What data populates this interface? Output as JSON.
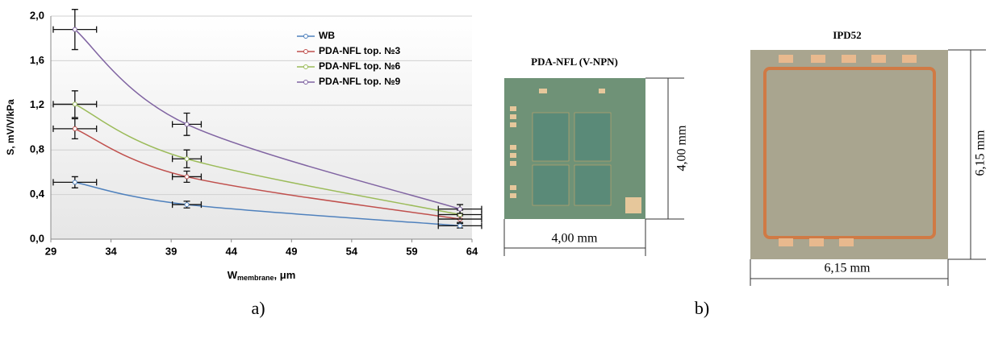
{
  "chart_data": {
    "type": "line",
    "ylabel": "S, mV/V/kPa",
    "xlabel": {
      "main": "W",
      "sub": "membrane",
      "unit": ", μm"
    },
    "x": [
      31,
      40.3,
      63
    ],
    "x_errors": [
      1.8,
      1.2,
      1.8
    ],
    "series": [
      {
        "name": "WB",
        "color": "#4f81bd",
        "values": [
          0.51,
          0.31,
          0.12
        ],
        "errors": [
          0.05,
          0.03,
          0.02
        ]
      },
      {
        "name": "PDA-NFL top. №3",
        "color": "#c0504d",
        "values": [
          0.99,
          0.56,
          0.18
        ],
        "errors": [
          0.09,
          0.05,
          0.03
        ]
      },
      {
        "name": "PDA-NFL top. №6",
        "color": "#9bbb59",
        "values": [
          1.21,
          0.72,
          0.22
        ],
        "errors": [
          0.12,
          0.08,
          0.04
        ]
      },
      {
        "name": "PDA-NFL top. №9",
        "color": "#8064a2",
        "values": [
          1.88,
          1.03,
          0.27
        ],
        "errors": [
          0.18,
          0.1,
          0.04
        ]
      }
    ],
    "xlim": [
      29,
      64
    ],
    "xticks": [
      29,
      34,
      39,
      44,
      49,
      54,
      59,
      64
    ],
    "ylim": [
      0,
      2.0
    ],
    "yticks": [
      {
        "value": 0,
        "label": "0,0"
      },
      {
        "value": 0.4,
        "label": "0,4"
      },
      {
        "value": 0.8,
        "label": "0,8"
      },
      {
        "value": 1.2,
        "label": "1,2"
      },
      {
        "value": 1.6,
        "label": "1,6"
      },
      {
        "value": 2.0,
        "label": "2,0"
      }
    ],
    "grid": true,
    "legend": "upper right"
  },
  "captions": {
    "a": "a)",
    "b": "b)"
  },
  "photos": [
    {
      "title": "PDA-NFL (V-NPN)",
      "width_label": "4,00 mm",
      "height_label": "4,00 mm"
    },
    {
      "title": "IPD52",
      "width_label": "6,15 mm",
      "height_label": "6,15 mm"
    }
  ]
}
